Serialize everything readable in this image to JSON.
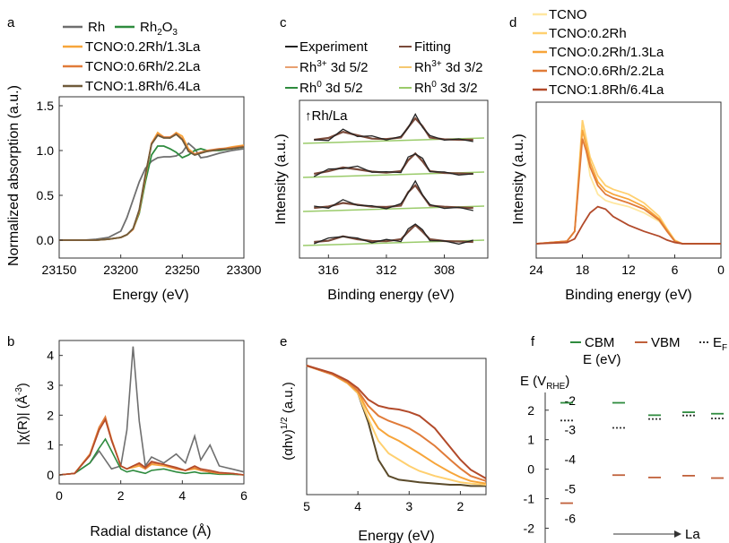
{
  "colors": {
    "Rh": "#6f6f6f",
    "Rh2O3": "#2e8b3e",
    "TCNO": "#ffe7a0",
    "Rh02": "#ffd070",
    "Rh02La13": "#f7a53a",
    "Rh06La22": "#e07b39",
    "Rh18La64": "#b24a2a",
    "CBM": "#2e8b3e",
    "VBM": "#c0603a",
    "EF": "#333333",
    "fitting": "#7a4a3a"
  },
  "chart_data": [
    {
      "panel": "a",
      "type": "line",
      "xlabel": "Energy (eV)",
      "ylabel": "Normalized absorption (a.u.)",
      "xlim": [
        23150,
        23300
      ],
      "ylim": [
        -0.2,
        1.6
      ],
      "xticks": [
        "23150",
        "23200",
        "23250",
        "23300"
      ],
      "yticks": [
        "0.0",
        "0.5",
        "1.0",
        "1.5"
      ],
      "legend": {
        "placement": "top",
        "entries": [
          "Rh",
          "Rh2O3",
          "TCNO:0.2Rh/1.3La",
          "TCNO:0.6Rh/2.2La",
          "TCNO:1.8Rh/6.4La"
        ]
      },
      "x": [
        23150,
        23160,
        23170,
        23180,
        23190,
        23200,
        23205,
        23210,
        23215,
        23220,
        23225,
        23230,
        23235,
        23240,
        23245,
        23250,
        23255,
        23260,
        23265,
        23270,
        23280,
        23290,
        23300
      ],
      "series": [
        {
          "name": "Rh",
          "values": [
            0.0,
            0.0,
            0.0,
            0.01,
            0.03,
            0.1,
            0.25,
            0.45,
            0.65,
            0.8,
            0.88,
            0.92,
            0.93,
            0.93,
            0.94,
            0.98,
            1.08,
            1.02,
            0.92,
            0.93,
            0.97,
            1.0,
            1.02
          ]
        },
        {
          "name": "Rh2O3",
          "values": [
            0.0,
            0.0,
            0.0,
            0.0,
            0.01,
            0.03,
            0.06,
            0.12,
            0.3,
            0.65,
            0.95,
            1.05,
            1.05,
            1.02,
            0.98,
            0.92,
            0.95,
            1.0,
            1.02,
            1.0,
            1.0,
            1.02,
            1.04
          ]
        },
        {
          "name": "TCNO:0.2Rh/1.3La",
          "values": [
            0.0,
            0.0,
            0.0,
            0.0,
            0.01,
            0.03,
            0.06,
            0.12,
            0.32,
            0.7,
            1.08,
            1.2,
            1.15,
            1.14,
            1.2,
            1.16,
            1.02,
            0.96,
            0.98,
            0.99,
            1.01,
            1.04,
            1.06
          ]
        },
        {
          "name": "TCNO:0.6Rh/2.2La",
          "values": [
            0.0,
            0.0,
            0.0,
            0.0,
            0.01,
            0.03,
            0.06,
            0.12,
            0.33,
            0.72,
            1.08,
            1.18,
            1.15,
            1.15,
            1.19,
            1.13,
            1.0,
            0.96,
            0.98,
            1.0,
            1.02,
            1.03,
            1.05
          ]
        },
        {
          "name": "TCNO:1.8Rh/6.4La",
          "values": [
            0.0,
            0.0,
            0.0,
            0.0,
            0.01,
            0.03,
            0.06,
            0.13,
            0.34,
            0.73,
            1.07,
            1.17,
            1.14,
            1.14,
            1.18,
            1.12,
            0.99,
            0.95,
            0.97,
            0.99,
            1.01,
            1.02,
            1.04
          ]
        }
      ]
    },
    {
      "panel": "c",
      "type": "line",
      "xlabel": "Binding energy (eV)",
      "ylabel": "Intensity (a.u.)",
      "xlim": [
        318,
        305
      ],
      "xticks": [
        "316",
        "312",
        "308"
      ],
      "annotation": "↑Rh/La",
      "legend": {
        "placement": "top",
        "entries": [
          "Experiment",
          "Fitting",
          "Rh3+ 3d 5/2",
          "Rh3+ 3d 3/2",
          "Rh0 3d 5/2",
          "Rh0 3d 3/2"
        ]
      },
      "x": [
        317,
        316,
        315,
        314,
        313,
        312,
        311,
        310.5,
        310,
        309.5,
        309,
        308,
        307,
        306
      ],
      "series": [
        {
          "name": "Experiment",
          "offset": 3,
          "values": [
            0.0,
            0.08,
            0.35,
            0.2,
            0.05,
            0.03,
            0.1,
            0.55,
            0.95,
            0.6,
            0.1,
            0.02,
            0.0,
            0.0
          ]
        },
        {
          "name": "Experiment",
          "offset": 2,
          "values": [
            0.0,
            0.12,
            0.28,
            0.2,
            0.1,
            0.05,
            0.12,
            0.6,
            0.9,
            0.55,
            0.12,
            0.04,
            0.02,
            0.0
          ]
        },
        {
          "name": "Experiment",
          "offset": 1,
          "values": [
            0.0,
            0.06,
            0.22,
            0.14,
            0.05,
            0.04,
            0.1,
            0.7,
            1.0,
            0.55,
            0.1,
            0.05,
            0.02,
            0.0
          ]
        },
        {
          "name": "Experiment",
          "offset": 0,
          "values": [
            0.0,
            0.05,
            0.25,
            0.12,
            0.04,
            0.03,
            0.12,
            0.45,
            0.75,
            0.45,
            0.12,
            0.04,
            0.02,
            0.0
          ]
        }
      ]
    },
    {
      "panel": "d",
      "type": "line",
      "xlabel": "Binding energy (eV)",
      "ylabel": "Intensity (a.u.)",
      "xlim": [
        24,
        0
      ],
      "xticks": [
        "24",
        "18",
        "12",
        "6",
        "0"
      ],
      "legend": {
        "placement": "top",
        "entries": [
          "TCNO",
          "TCNO:0.2Rh",
          "TCNO:0.2Rh/1.3La",
          "TCNO:0.6Rh/2.2La",
          "TCNO:1.8Rh/6.4La"
        ]
      },
      "x": [
        24,
        20,
        19,
        18,
        17.5,
        17,
        16,
        15,
        14,
        12,
        10,
        8,
        7,
        6,
        5,
        0
      ],
      "series": [
        {
          "name": "TCNO",
          "values": [
            0.0,
            0.02,
            0.1,
            0.95,
            0.75,
            0.55,
            0.4,
            0.35,
            0.33,
            0.3,
            0.25,
            0.18,
            0.1,
            0.02,
            0.0,
            0.0
          ]
        },
        {
          "name": "TCNO:0.2Rh",
          "values": [
            0.0,
            0.02,
            0.1,
            1.0,
            0.85,
            0.7,
            0.55,
            0.47,
            0.44,
            0.4,
            0.33,
            0.22,
            0.12,
            0.03,
            0.0,
            0.0
          ]
        },
        {
          "name": "TCNO:0.2Rh/1.3La",
          "values": [
            0.0,
            0.02,
            0.1,
            0.92,
            0.8,
            0.66,
            0.5,
            0.43,
            0.4,
            0.36,
            0.3,
            0.2,
            0.11,
            0.02,
            0.0,
            0.0
          ]
        },
        {
          "name": "TCNO:0.6Rh/2.2La",
          "values": [
            0.0,
            0.02,
            0.1,
            0.85,
            0.75,
            0.62,
            0.47,
            0.4,
            0.37,
            0.33,
            0.28,
            0.19,
            0.1,
            0.02,
            0.0,
            0.0
          ]
        },
        {
          "name": "TCNO:1.8Rh/6.4La",
          "values": [
            0.0,
            0.01,
            0.04,
            0.15,
            0.2,
            0.25,
            0.3,
            0.28,
            0.22,
            0.15,
            0.1,
            0.06,
            0.03,
            0.01,
            0.0,
            0.0
          ]
        }
      ]
    },
    {
      "panel": "b",
      "type": "line",
      "xlabel": "Radial distance (Å)",
      "ylabel": "|χ(R)| (Å-3)",
      "xlim": [
        0,
        6
      ],
      "ylim": [
        -0.3,
        4.5
      ],
      "xticks": [
        "0",
        "2",
        "4",
        "6"
      ],
      "yticks": [
        "0",
        "1",
        "2",
        "3",
        "4"
      ],
      "x": [
        0,
        0.5,
        1.0,
        1.3,
        1.5,
        1.7,
        2.0,
        2.2,
        2.4,
        2.6,
        2.8,
        3.0,
        3.4,
        3.8,
        4.1,
        4.4,
        4.6,
        4.9,
        5.2,
        5.6,
        6.0
      ],
      "series": [
        {
          "name": "Rh",
          "values": [
            0.0,
            0.05,
            0.4,
            0.8,
            0.5,
            0.2,
            0.3,
            1.5,
            4.3,
            1.8,
            0.3,
            0.6,
            0.4,
            0.7,
            0.4,
            1.3,
            0.5,
            1.0,
            0.3,
            0.2,
            0.1
          ]
        },
        {
          "name": "Rh2O3",
          "values": [
            0.0,
            0.05,
            0.4,
            0.9,
            1.2,
            0.8,
            0.2,
            0.1,
            0.15,
            0.1,
            0.05,
            0.15,
            0.2,
            0.1,
            0.05,
            0.1,
            0.05,
            0.05,
            0.02,
            0.02,
            0.0
          ]
        },
        {
          "name": "TCNO:0.2Rh/1.3La",
          "values": [
            0.0,
            0.05,
            0.7,
            1.6,
            1.9,
            1.2,
            0.3,
            0.2,
            0.25,
            0.3,
            0.2,
            0.35,
            0.3,
            0.2,
            0.15,
            0.2,
            0.15,
            0.1,
            0.05,
            0.05,
            0.0
          ]
        },
        {
          "name": "TCNO:0.6Rh/2.2La",
          "values": [
            0.0,
            0.05,
            0.7,
            1.6,
            1.95,
            1.2,
            0.3,
            0.2,
            0.3,
            0.35,
            0.2,
            0.4,
            0.35,
            0.2,
            0.15,
            0.25,
            0.15,
            0.1,
            0.05,
            0.05,
            0.0
          ]
        },
        {
          "name": "TCNO:1.8Rh/6.4La",
          "values": [
            0.0,
            0.05,
            0.65,
            1.5,
            1.85,
            1.15,
            0.3,
            0.2,
            0.3,
            0.4,
            0.25,
            0.45,
            0.35,
            0.25,
            0.15,
            0.3,
            0.2,
            0.15,
            0.08,
            0.05,
            0.0
          ]
        }
      ]
    },
    {
      "panel": "e",
      "type": "line",
      "xlabel": "Energy (eV)",
      "ylabel": "(αhν)1/2 (a.u.)",
      "xlim": [
        5,
        1.5
      ],
      "xticks": [
        "5",
        "4",
        "3",
        "2"
      ],
      "x": [
        5.0,
        4.5,
        4.2,
        4.0,
        3.8,
        3.6,
        3.4,
        3.2,
        3.0,
        2.8,
        2.5,
        2.2,
        2.0,
        1.8,
        1.5
      ],
      "series": [
        {
          "name": "TCNO",
          "values": [
            1.0,
            0.93,
            0.86,
            0.78,
            0.55,
            0.25,
            0.12,
            0.09,
            0.08,
            0.07,
            0.06,
            0.05,
            0.05,
            0.04,
            0.04
          ]
        },
        {
          "name": "TCNO:0.2Rh",
          "values": [
            1.0,
            0.93,
            0.86,
            0.78,
            0.58,
            0.4,
            0.3,
            0.25,
            0.2,
            0.16,
            0.12,
            0.09,
            0.07,
            0.06,
            0.05
          ]
        },
        {
          "name": "TCNO:0.2Rh/1.3La",
          "values": [
            1.0,
            0.93,
            0.86,
            0.79,
            0.63,
            0.5,
            0.44,
            0.4,
            0.35,
            0.3,
            0.22,
            0.15,
            0.11,
            0.08,
            0.06
          ]
        },
        {
          "name": "TCNO:0.6Rh/2.2La",
          "values": [
            1.0,
            0.93,
            0.87,
            0.8,
            0.68,
            0.6,
            0.56,
            0.53,
            0.5,
            0.45,
            0.36,
            0.25,
            0.18,
            0.12,
            0.08
          ]
        },
        {
          "name": "TCNO:1.8Rh/6.4La",
          "values": [
            1.0,
            0.94,
            0.88,
            0.82,
            0.73,
            0.68,
            0.66,
            0.65,
            0.63,
            0.6,
            0.5,
            0.35,
            0.25,
            0.17,
            0.1
          ]
        }
      ]
    },
    {
      "panel": "f",
      "type": "scatter",
      "legend": {
        "placement": "top",
        "entries": [
          "CBM",
          "VBM",
          "EF"
        ]
      },
      "ylabel_left": "E (VRHE)",
      "ylabel_right": "E (eV)",
      "xlabel": "La",
      "ylim": [
        -2.5,
        2.6
      ],
      "yticks_left": [
        "2",
        "1",
        "0",
        "-1",
        "-2"
      ],
      "yticks_right": [
        "-2",
        "-3",
        "-4",
        "-5",
        "-6"
      ],
      "x": [
        1,
        2,
        3,
        4,
        5
      ],
      "series": [
        {
          "name": "CBM",
          "values": [
            2.25,
            2.25,
            1.83,
            1.93,
            1.88
          ]
        },
        {
          "name": "VBM",
          "values": [
            -1.15,
            -0.2,
            -0.28,
            -0.22,
            -0.3
          ]
        },
        {
          "name": "EF",
          "values": [
            1.65,
            1.4,
            1.7,
            1.82,
            1.72
          ]
        }
      ]
    }
  ],
  "labels": {
    "a": {
      "panel": "a",
      "ylabel": "Normalized absorption (a.u.)",
      "xlabel": "Energy (eV)",
      "xticks": [
        "23150",
        "23200",
        "23250",
        "23300"
      ],
      "yticks": [
        "0.0",
        "0.5",
        "1.0",
        "1.5"
      ],
      "legend": [
        "Rh",
        "Rh",
        "2",
        "O",
        "3",
        "TCNO:0.2Rh/1.3La",
        "TCNO:0.6Rh/2.2La",
        "TCNO:1.8Rh/6.4La"
      ]
    },
    "b": {
      "panel": "b",
      "ylabel": "|χ(R)| (Å",
      "ylabel_sup": "-3",
      "ylabel_end": ")",
      "xlabel": "Radial distance (Å)",
      "xticks": [
        "0",
        "2",
        "4",
        "6"
      ],
      "yticks": [
        "0",
        "1",
        "2",
        "3",
        "4"
      ]
    },
    "c": {
      "panel": "c",
      "ylabel": "Intensity (a.u.)",
      "xlabel": "Binding energy (eV)",
      "xticks": [
        "316",
        "312",
        "308"
      ],
      "annotation": "↑Rh/La",
      "legend": [
        "Experiment",
        "Fitting",
        "Rh",
        "3+",
        " 3d 5/2",
        "Rh",
        "3+",
        " 3d 3/2",
        "Rh",
        "0",
        " 3d 5/2",
        "Rh",
        "0",
        " 3d 3/2"
      ]
    },
    "d": {
      "panel": "d",
      "ylabel": "Intensity (a.u.)",
      "xlabel": "Binding energy (eV)",
      "xticks": [
        "24",
        "18",
        "12",
        "6",
        "0"
      ],
      "legend": [
        "TCNO",
        "TCNO:0.2Rh",
        "TCNO:0.2Rh/1.3La",
        "TCNO:0.6Rh/2.2La",
        "TCNO:1.8Rh/6.4La"
      ]
    },
    "e": {
      "panel": "e",
      "ylabel": "(αhν)",
      "ylabel_sup": "1/2",
      "ylabel_end": " (a.u.)",
      "xlabel": "Energy (eV)",
      "xticks": [
        "5",
        "4",
        "3",
        "2"
      ]
    },
    "f": {
      "panel": "f",
      "legend": [
        "CBM",
        "VBM",
        "E",
        "F"
      ],
      "ylabel_left": "E (V",
      "ylabel_left_sub": "RHE",
      "ylabel_left_end": ")",
      "ylabel_right": "E (eV)",
      "yticks_left": [
        "2",
        "1",
        "0",
        "-1",
        "-2"
      ],
      "yticks_right": [
        "-2",
        "-3",
        "-4",
        "-5",
        "-6"
      ],
      "xlabel": "La"
    }
  }
}
